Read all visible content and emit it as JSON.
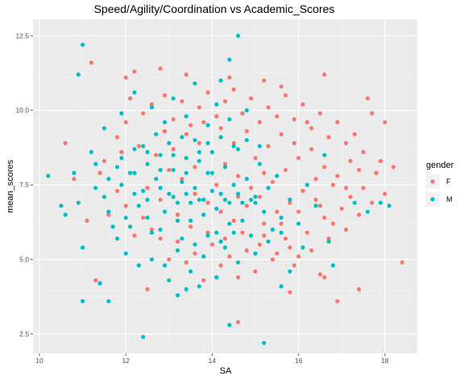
{
  "chart_data": {
    "type": "scatter",
    "title": "Speed/Agility/Coordination vs Academic_Scores",
    "xlabel": "SA",
    "ylabel": "mean_scores",
    "xlim": [
      9.85,
      18.75
    ],
    "ylim": [
      1.85,
      13.05
    ],
    "x_ticks": [
      10,
      12,
      14,
      16,
      18
    ],
    "y_ticks": [
      2.5,
      5.0,
      7.5,
      10.0,
      12.5
    ],
    "x_tick_labels": [
      "10",
      "12",
      "14",
      "16",
      "18"
    ],
    "y_tick_labels": [
      "2.5",
      "5.0",
      "7.5",
      "10.0",
      "12.5"
    ],
    "grid": true,
    "legend": {
      "title": "gender",
      "position": "right"
    },
    "series": [
      {
        "name": "F",
        "color": "#F8766D",
        "points": [
          [
            11.2,
            11.6
          ],
          [
            12.0,
            11.1
          ],
          [
            12.2,
            11.3
          ],
          [
            12.8,
            11.4
          ],
          [
            13.4,
            11.2
          ],
          [
            14.4,
            11.1
          ],
          [
            15.2,
            11.0
          ],
          [
            15.6,
            10.8
          ],
          [
            16.6,
            11.2
          ],
          [
            17.6,
            10.4
          ],
          [
            18.0,
            9.6
          ],
          [
            18.4,
            4.9
          ],
          [
            17.4,
            4.0
          ],
          [
            16.9,
            3.6
          ],
          [
            16.6,
            4.4
          ],
          [
            15.8,
            3.9
          ],
          [
            14.6,
            2.9
          ],
          [
            12.5,
            4.0
          ],
          [
            11.4,
            4.2
          ],
          [
            11.3,
            4.3
          ],
          [
            10.6,
            8.9
          ],
          [
            10.8,
            7.7
          ],
          [
            11.1,
            6.3
          ],
          [
            11.9,
            8.6
          ],
          [
            12.0,
            9.6
          ],
          [
            12.1,
            10.4
          ],
          [
            12.4,
            9.9
          ],
          [
            12.6,
            10.2
          ],
          [
            12.9,
            10.5
          ],
          [
            13.1,
            9.7
          ],
          [
            13.3,
            10.3
          ],
          [
            13.5,
            9.5
          ],
          [
            13.7,
            10.1
          ],
          [
            13.9,
            10.6
          ],
          [
            14.1,
            9.8
          ],
          [
            14.3,
            10.3
          ],
          [
            14.5,
            10.7
          ],
          [
            14.7,
            9.9
          ],
          [
            14.9,
            10.4
          ],
          [
            15.1,
            9.6
          ],
          [
            15.3,
            10.1
          ],
          [
            15.5,
            9.8
          ],
          [
            15.7,
            10.5
          ],
          [
            15.9,
            9.7
          ],
          [
            16.1,
            10.2
          ],
          [
            16.3,
            9.4
          ],
          [
            16.5,
            9.9
          ],
          [
            16.7,
            9.1
          ],
          [
            16.9,
            9.6
          ],
          [
            17.1,
            8.9
          ],
          [
            17.3,
            9.2
          ],
          [
            17.5,
            8.6
          ],
          [
            17.7,
            9.9
          ],
          [
            17.9,
            8.3
          ],
          [
            18.2,
            8.1
          ],
          [
            17.8,
            7.9
          ],
          [
            17.5,
            7.4
          ],
          [
            17.2,
            7.1
          ],
          [
            17.0,
            6.7
          ],
          [
            16.8,
            7.5
          ],
          [
            16.6,
            6.4
          ],
          [
            16.4,
            7.0
          ],
          [
            16.2,
            5.9
          ],
          [
            16.0,
            6.6
          ],
          [
            15.8,
            5.4
          ],
          [
            15.6,
            6.2
          ],
          [
            15.4,
            5.0
          ],
          [
            15.2,
            5.8
          ],
          [
            15.0,
            4.6
          ],
          [
            14.8,
            5.3
          ],
          [
            14.6,
            4.4
          ],
          [
            14.4,
            5.1
          ],
          [
            14.2,
            4.8
          ],
          [
            14.0,
            5.5
          ],
          [
            13.8,
            4.3
          ],
          [
            13.6,
            5.2
          ],
          [
            13.4,
            4.9
          ],
          [
            13.2,
            5.6
          ],
          [
            13.0,
            5.0
          ],
          [
            12.8,
            5.7
          ],
          [
            12.6,
            6.0
          ],
          [
            12.4,
            6.4
          ],
          [
            12.2,
            5.8
          ],
          [
            12.0,
            6.8
          ],
          [
            11.8,
            7.3
          ],
          [
            11.6,
            6.5
          ],
          [
            11.4,
            7.9
          ],
          [
            11.5,
            8.3
          ],
          [
            11.8,
            9.1
          ],
          [
            12.3,
            8.8
          ],
          [
            12.7,
            8.5
          ],
          [
            13.0,
            8.0
          ],
          [
            13.3,
            7.7
          ],
          [
            13.6,
            7.2
          ],
          [
            13.9,
            6.9
          ],
          [
            14.2,
            6.6
          ],
          [
            14.5,
            6.3
          ],
          [
            14.8,
            6.8
          ],
          [
            15.1,
            7.1
          ],
          [
            15.4,
            7.6
          ],
          [
            15.7,
            8.0
          ],
          [
            16.0,
            8.4
          ],
          [
            16.3,
            8.7
          ],
          [
            16.6,
            8.1
          ],
          [
            16.9,
            7.8
          ],
          [
            17.2,
            8.3
          ],
          [
            16.4,
            7.7
          ],
          [
            16.1,
            7.3
          ],
          [
            15.8,
            6.9
          ],
          [
            15.5,
            6.6
          ],
          [
            15.2,
            6.2
          ],
          [
            14.9,
            7.4
          ],
          [
            14.6,
            7.8
          ],
          [
            14.3,
            8.2
          ],
          [
            14.0,
            8.6
          ],
          [
            13.7,
            8.9
          ],
          [
            13.4,
            9.2
          ],
          [
            13.1,
            8.7
          ],
          [
            12.9,
            9.3
          ],
          [
            12.5,
            7.4
          ],
          [
            12.8,
            7.0
          ],
          [
            13.2,
            6.5
          ],
          [
            13.5,
            6.1
          ],
          [
            13.9,
            5.9
          ],
          [
            14.3,
            5.7
          ],
          [
            14.7,
            5.9
          ],
          [
            15.1,
            5.5
          ],
          [
            15.5,
            5.2
          ],
          [
            15.9,
            4.8
          ],
          [
            16.3,
            5.3
          ],
          [
            16.7,
            5.7
          ],
          [
            17.1,
            6.0
          ],
          [
            17.4,
            6.5
          ],
          [
            17.7,
            6.9
          ],
          [
            18.0,
            7.2
          ],
          [
            15.3,
            8.8
          ],
          [
            15.6,
            9.2
          ],
          [
            15.9,
            8.9
          ],
          [
            16.2,
            9.6
          ],
          [
            14.8,
            9.3
          ],
          [
            14.5,
            8.9
          ],
          [
            14.2,
            9.4
          ],
          [
            13.8,
            9.6
          ],
          [
            15.0,
            8.4
          ],
          [
            15.2,
            7.9
          ],
          [
            14.6,
            7.1
          ],
          [
            14.1,
            7.5
          ],
          [
            13.6,
            8.1
          ],
          [
            16.5,
            6.8
          ],
          [
            16.8,
            6.2
          ],
          [
            17.1,
            7.4
          ],
          [
            17.4,
            8.0
          ],
          [
            15.7,
            5.7
          ],
          [
            16.0,
            5.1
          ],
          [
            16.5,
            4.5
          ]
        ]
      },
      {
        "name": "M",
        "color": "#00BFC4",
        "points": [
          [
            10.2,
            7.8
          ],
          [
            10.5,
            6.8
          ],
          [
            10.6,
            6.5
          ],
          [
            10.8,
            7.9
          ],
          [
            10.9,
            6.9
          ],
          [
            11.0,
            12.2
          ],
          [
            10.9,
            11.2
          ],
          [
            11.0,
            5.4
          ],
          [
            11.0,
            3.6
          ],
          [
            11.4,
            4.2
          ],
          [
            11.6,
            3.6
          ],
          [
            12.4,
            2.4
          ],
          [
            14.6,
            12.5
          ],
          [
            14.4,
            11.7
          ],
          [
            14.2,
            11.0
          ],
          [
            14.4,
            2.8
          ],
          [
            15.2,
            2.2
          ],
          [
            13.2,
            3.8
          ],
          [
            13.4,
            4.0
          ],
          [
            15.6,
            4.1
          ],
          [
            15.8,
            4.6
          ],
          [
            16.8,
            4.8
          ],
          [
            17.3,
            6.9
          ],
          [
            17.9,
            6.9
          ],
          [
            18.1,
            6.8
          ],
          [
            17.6,
            6.6
          ],
          [
            11.2,
            8.6
          ],
          [
            11.3,
            7.4
          ],
          [
            11.5,
            7.1
          ],
          [
            11.7,
            6.1
          ],
          [
            11.8,
            8.1
          ],
          [
            11.9,
            7.5
          ],
          [
            12.0,
            6.4
          ],
          [
            12.1,
            7.9
          ],
          [
            12.2,
            8.7
          ],
          [
            12.3,
            6.8
          ],
          [
            12.4,
            7.3
          ],
          [
            12.5,
            8.2
          ],
          [
            12.6,
            5.9
          ],
          [
            12.7,
            7.7
          ],
          [
            12.8,
            8.5
          ],
          [
            12.9,
            6.6
          ],
          [
            13.0,
            7.2
          ],
          [
            13.1,
            8.0
          ],
          [
            13.2,
            6.3
          ],
          [
            13.3,
            7.6
          ],
          [
            13.4,
            8.4
          ],
          [
            13.5,
            6.9
          ],
          [
            13.6,
            7.4
          ],
          [
            13.7,
            8.3
          ],
          [
            13.8,
            6.5
          ],
          [
            13.9,
            7.9
          ],
          [
            14.0,
            8.6
          ],
          [
            14.1,
            6.7
          ],
          [
            14.2,
            7.2
          ],
          [
            14.3,
            8.1
          ],
          [
            14.4,
            6.2
          ],
          [
            14.5,
            7.5
          ],
          [
            14.6,
            8.7
          ],
          [
            14.7,
            6.9
          ],
          [
            14.8,
            7.7
          ],
          [
            14.9,
            5.8
          ],
          [
            15.0,
            7.1
          ],
          [
            15.1,
            8.2
          ],
          [
            15.2,
            6.6
          ],
          [
            15.3,
            7.4
          ],
          [
            15.4,
            6.0
          ],
          [
            15.5,
            7.8
          ],
          [
            15.6,
            6.4
          ],
          [
            15.8,
            7.0
          ],
          [
            16.0,
            6.2
          ],
          [
            16.2,
            7.5
          ],
          [
            16.4,
            6.8
          ],
          [
            16.6,
            8.5
          ],
          [
            16.7,
            5.6
          ],
          [
            11.5,
            9.4
          ],
          [
            11.9,
            9.9
          ],
          [
            12.2,
            10.6
          ],
          [
            12.6,
            10.1
          ],
          [
            12.9,
            9.6
          ],
          [
            13.1,
            10.4
          ],
          [
            13.4,
            9.8
          ],
          [
            13.6,
            10.9
          ],
          [
            13.9,
            9.5
          ],
          [
            14.1,
            10.2
          ],
          [
            14.4,
            9.7
          ],
          [
            14.8,
            10.0
          ],
          [
            12.0,
            5.2
          ],
          [
            12.3,
            4.8
          ],
          [
            12.6,
            5.0
          ],
          [
            12.9,
            4.8
          ],
          [
            13.2,
            5.3
          ],
          [
            13.5,
            4.6
          ],
          [
            13.8,
            5.1
          ],
          [
            14.1,
            4.4
          ],
          [
            14.3,
            5.4
          ],
          [
            14.6,
            4.9
          ],
          [
            15.0,
            5.2
          ],
          [
            11.8,
            5.7
          ],
          [
            11.6,
            6.6
          ],
          [
            12.1,
            6.1
          ],
          [
            12.5,
            6.4
          ],
          [
            12.8,
            6.0
          ],
          [
            13.2,
            6.9
          ],
          [
            13.5,
            6.3
          ],
          [
            13.8,
            7.0
          ],
          [
            14.1,
            5.9
          ],
          [
            14.4,
            6.9
          ],
          [
            14.7,
            6.3
          ],
          [
            15.0,
            6.9
          ],
          [
            12.4,
            8.8
          ],
          [
            12.7,
            9.2
          ],
          [
            13.0,
            8.9
          ],
          [
            13.3,
            9.1
          ],
          [
            13.6,
            9.0
          ],
          [
            13.9,
            8.9
          ],
          [
            14.2,
            9.1
          ],
          [
            14.5,
            8.8
          ],
          [
            14.8,
            9.0
          ],
          [
            15.1,
            8.8
          ],
          [
            12.2,
            7.2
          ],
          [
            12.5,
            7.0
          ],
          [
            12.8,
            7.4
          ],
          [
            13.1,
            7.1
          ],
          [
            13.4,
            7.2
          ],
          [
            13.7,
            7.0
          ],
          [
            14.0,
            7.3
          ],
          [
            14.3,
            7.0
          ],
          [
            14.6,
            7.2
          ],
          [
            14.9,
            7.0
          ],
          [
            11.3,
            8.2
          ],
          [
            11.6,
            7.7
          ],
          [
            11.9,
            8.4
          ],
          [
            12.2,
            7.9
          ],
          [
            12.5,
            8.6
          ],
          [
            12.8,
            8.0
          ],
          [
            13.1,
            8.5
          ],
          [
            13.4,
            7.9
          ],
          [
            13.7,
            8.6
          ],
          [
            14.0,
            7.9
          ],
          [
            13.3,
            5.7
          ],
          [
            13.6,
            5.5
          ],
          [
            13.9,
            5.8
          ],
          [
            14.2,
            5.6
          ],
          [
            14.5,
            5.9
          ],
          [
            15.3,
            5.6
          ],
          [
            15.6,
            5.9
          ],
          [
            16.1,
            5.4
          ],
          [
            13.0,
            4.3
          ],
          [
            13.7,
            4.1
          ]
        ]
      }
    ]
  }
}
